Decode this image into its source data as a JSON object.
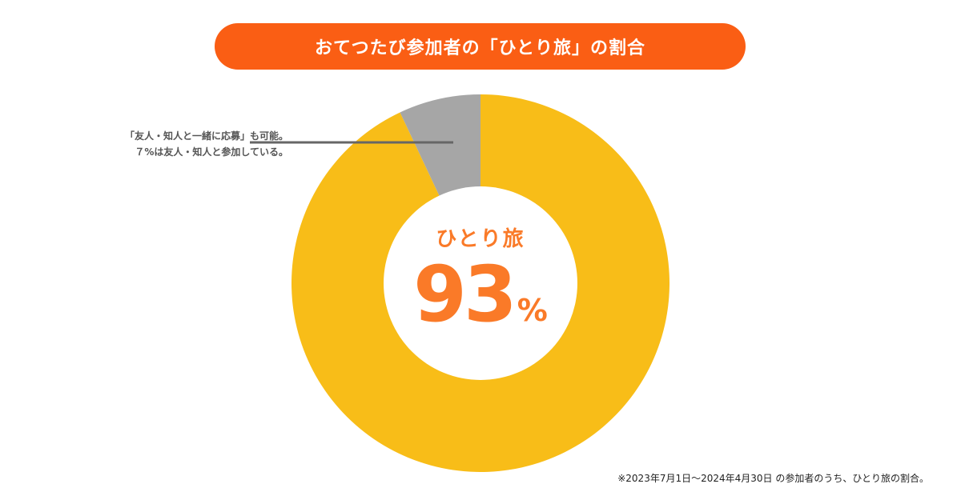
{
  "title": "おてつたび参加者の「ひとり旅」の割合",
  "callout": {
    "line1": "「友人・知人と一緒に応募」も可能。",
    "line2": "７%は友人・知人と参加している。"
  },
  "center": {
    "label": "ひとり旅",
    "value": "93",
    "unit": "%"
  },
  "footnote": "※2023年7月1日〜2024年4月30日 の参加者のうち、ひとり旅の割合。",
  "colors": {
    "title_bg": "#fa5e14",
    "solo": "#f8bd18",
    "group": "#a6a6a6",
    "accent_text": "#fa7a28",
    "leader_line": "#666666"
  },
  "chart_data": {
    "type": "pie",
    "donut": true,
    "title": "おてつたび参加者の「ひとり旅」の割合",
    "slices": [
      {
        "name": "ひとり旅",
        "value": 93,
        "color": "#f8bd18"
      },
      {
        "name": "友人・知人と参加",
        "value": 7,
        "color": "#a6a6a6"
      }
    ],
    "unit": "%"
  }
}
